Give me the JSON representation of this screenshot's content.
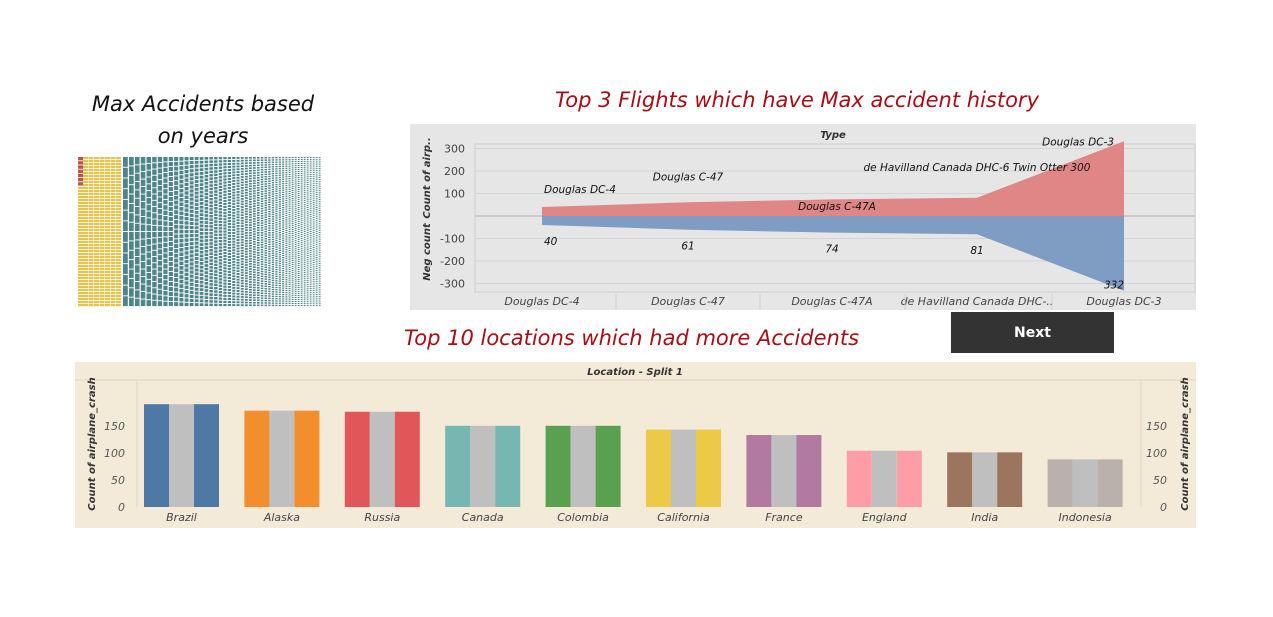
{
  "titles": {
    "left_line1": "Max Accidents based",
    "left_line2": "on years",
    "top3": "Top 3 Flights which have Max accident history",
    "top10": "Top 10 locations which had more Accidents"
  },
  "next_button": {
    "label": "Next"
  },
  "colors": {
    "title_red": "#a80d16",
    "area_positive": "#e08686",
    "area_negative": "#7f9dc3",
    "area_bg": "#e6e6e6",
    "bar_bg": "#f4ead8",
    "bar_mid": "#bfbfbf",
    "treemap_red": "#b5574b",
    "treemap_yellow": "#e6c44b",
    "treemap_teal": "#2f6e76"
  },
  "chart_data": [
    {
      "type": "area",
      "header": "Type",
      "ylabel_top": "Count of airp..",
      "ylabel_bottom": "Neg count",
      "categories": [
        "Douglas DC-4",
        "Douglas C-47",
        "Douglas C-47A",
        "de Havilland Canada DHC-..",
        "Douglas DC-3"
      ],
      "point_labels": [
        "Douglas DC-4",
        "Douglas C-47",
        "Douglas C-47A",
        "de Havilland Canada DHC-6 Twin Otter 300",
        "Douglas DC-3"
      ],
      "values": [
        40,
        61,
        74,
        81,
        332
      ],
      "neg_values": [
        -40,
        -61,
        -74,
        -81,
        -332
      ],
      "yticks_top": [
        100,
        200,
        300
      ],
      "yticks_bottom": [
        -100,
        -200,
        -300
      ],
      "ylim": [
        -340,
        340
      ]
    },
    {
      "type": "bar",
      "header": "Location - Split 1",
      "ylabel": "Count of airplane_crash",
      "categories": [
        "Brazil",
        "Alaska",
        "Russia",
        "Canada",
        "Colombia",
        "California",
        "France",
        "England",
        "India",
        "Indonesia"
      ],
      "values": [
        190,
        178,
        176,
        150,
        150,
        143,
        133,
        104,
        101,
        88
      ],
      "colors": [
        "#4e79a7",
        "#f28e2b",
        "#e15759",
        "#76b7b2",
        "#59a14f",
        "#edc948",
        "#b07aa1",
        "#ff9da7",
        "#9c755f",
        "#bab0ac"
      ],
      "yticks": [
        0,
        50,
        100,
        150
      ],
      "ylim": [
        0,
        200
      ]
    }
  ]
}
